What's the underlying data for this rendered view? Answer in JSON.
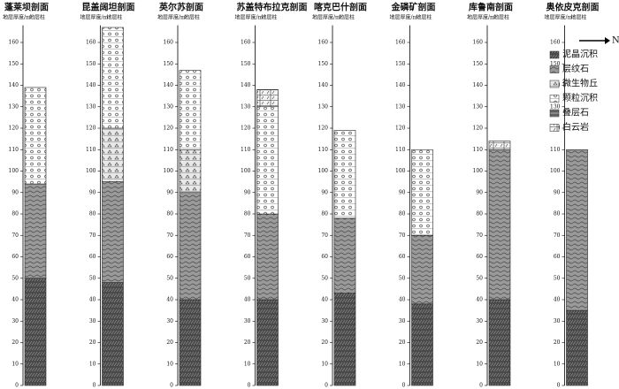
{
  "ylim": [
    0,
    168
  ],
  "ticks": [
    0,
    10,
    20,
    30,
    40,
    50,
    60,
    70,
    80,
    90,
    100,
    110,
    120,
    130,
    140,
    150,
    160
  ],
  "column_header": [
    "地层厚度/m",
    "地层柱"
  ],
  "north": "N",
  "legend": [
    "泥晶沉积",
    "层纹石",
    "微生物丘",
    "颗粒沉积",
    "叠层石",
    "白云岩"
  ],
  "sections": [
    {
      "title": "蓬莱坝剖面",
      "layers": [
        {
          "from": 0,
          "to": 50,
          "lith": 0
        },
        {
          "from": 50,
          "to": 94,
          "lith": 1
        },
        {
          "from": 94,
          "to": 139,
          "lith": 3
        }
      ]
    },
    {
      "title": "昆盖阔坦剖面",
      "layers": [
        {
          "from": 0,
          "to": 48,
          "lith": 0
        },
        {
          "from": 48,
          "to": 95,
          "lith": 1
        },
        {
          "from": 95,
          "to": 120,
          "lith": 2
        },
        {
          "from": 120,
          "to": 167,
          "lith": 3
        }
      ]
    },
    {
      "title": "英尔苏剖面",
      "layers": [
        {
          "from": 0,
          "to": 40,
          "lith": 0
        },
        {
          "from": 40,
          "to": 90,
          "lith": 1
        },
        {
          "from": 90,
          "to": 110,
          "lith": 2
        },
        {
          "from": 110,
          "to": 147,
          "lith": 3
        }
      ]
    },
    {
      "title": "苏盖特布拉克剖面",
      "layers": [
        {
          "from": 0,
          "to": 40,
          "lith": 0
        },
        {
          "from": 40,
          "to": 80,
          "lith": 1
        },
        {
          "from": 80,
          "to": 130,
          "lith": 3
        },
        {
          "from": 130,
          "to": 138,
          "lith": 5
        }
      ]
    },
    {
      "title": "喀克巴什剖面",
      "layers": [
        {
          "from": 0,
          "to": 43,
          "lith": 0
        },
        {
          "from": 43,
          "to": 78,
          "lith": 1
        },
        {
          "from": 78,
          "to": 119,
          "lith": 3
        }
      ]
    },
    {
      "title": "金磷矿剖面",
      "layers": [
        {
          "from": 0,
          "to": 38,
          "lith": 0
        },
        {
          "from": 38,
          "to": 70,
          "lith": 1
        },
        {
          "from": 70,
          "to": 110,
          "lith": 3
        }
      ]
    },
    {
      "title": "库鲁南剖面",
      "layers": [
        {
          "from": 0,
          "to": 40,
          "lith": 0
        },
        {
          "from": 40,
          "to": 110,
          "lith": 1
        },
        {
          "from": 110,
          "to": 114,
          "lith": 5
        }
      ]
    },
    {
      "title": "奥依皮克剖面",
      "layers": [
        {
          "from": 0,
          "to": 35,
          "lith": 0
        },
        {
          "from": 35,
          "to": 110,
          "lith": 1
        }
      ]
    }
  ]
}
